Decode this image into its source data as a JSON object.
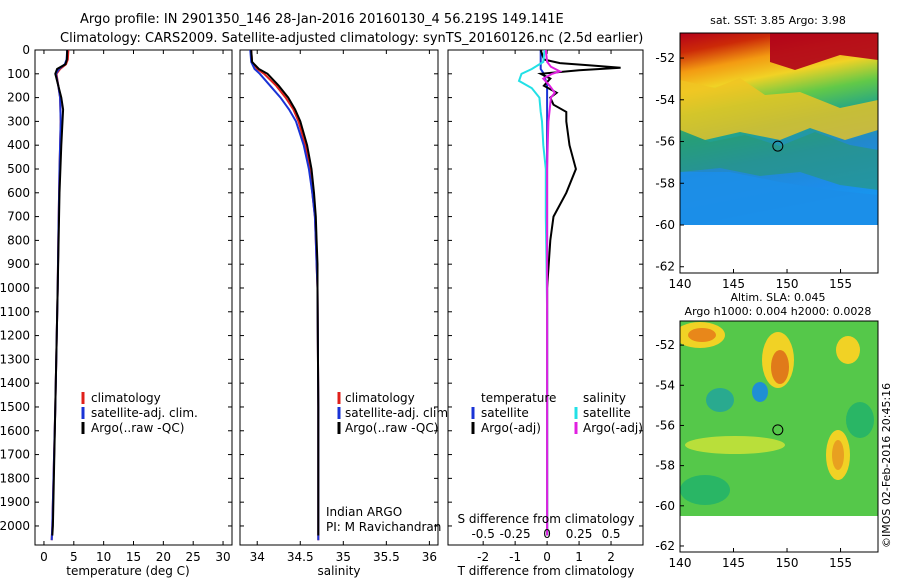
{
  "header": {
    "line1": "Argo profile: IN 2901350_146 28-Jan-2016 20160130_4 56.219S 149.141E",
    "line2": "Climatology: CARS2009. Satellite-adjusted climatology: synTS_20160126.nc (2.5d earlier)"
  },
  "footer": {
    "credit": "©IMOS 02-Feb-2016 20:45:16"
  },
  "colors": {
    "climatology": "#e0201b",
    "satellite": "#1a33d6",
    "argo": "#000000",
    "sal_satellite": "#22e0e6",
    "sal_argo": "#e020e0"
  },
  "legends": {
    "temp": [
      "climatology",
      "satellite-adj. clim.",
      "Argo(..raw -QC)"
    ],
    "sal": [
      "climatology",
      "satellite-adj. clim.",
      "Argo(..raw -QC)"
    ],
    "diff_t_head": "temperature",
    "diff_s_head": "salinity",
    "diff_t": [
      "satellite",
      "Argo(-adj)"
    ],
    "diff_s": [
      "satellite",
      "Argo(-adj)"
    ]
  },
  "annotation": {
    "line1": "Indian ARGO",
    "line2": "PI: M Ravichandran"
  },
  "chart_data": [
    {
      "type": "line",
      "title": "",
      "xlabel": "temperature (deg C)",
      "ylim": [
        2080,
        0
      ],
      "xlim": [
        -1.5,
        31.5
      ],
      "xticks": [
        0,
        5,
        10,
        15,
        20,
        25,
        30
      ],
      "yticks": [
        0,
        100,
        200,
        300,
        400,
        500,
        600,
        700,
        800,
        900,
        1000,
        1100,
        1200,
        1300,
        1400,
        1500,
        1600,
        1700,
        1800,
        1900,
        2000
      ],
      "series": [
        {
          "name": "climatology",
          "depth": [
            0,
            40,
            60,
            80,
            100,
            150,
            200,
            300,
            500,
            800,
            1000,
            1500,
            2000,
            2060
          ],
          "values": [
            4.1,
            4.0,
            3.7,
            2.7,
            2.1,
            2.4,
            2.7,
            2.8,
            2.6,
            2.4,
            2.3,
            1.9,
            1.4,
            1.3
          ]
        },
        {
          "name": "satellite-adj. clim.",
          "depth": [
            0,
            40,
            60,
            80,
            100,
            150,
            200,
            300,
            500,
            800,
            1000,
            1500,
            2000,
            2060
          ],
          "values": [
            3.9,
            3.8,
            3.5,
            2.5,
            2.0,
            2.4,
            2.7,
            2.8,
            2.6,
            2.4,
            2.3,
            1.9,
            1.4,
            1.3
          ]
        },
        {
          "name": "Argo(..raw -QC)",
          "depth": [
            0,
            40,
            60,
            80,
            100,
            150,
            200,
            250,
            300,
            400,
            500,
            600,
            800,
            1000,
            1500,
            2000,
            2040
          ],
          "values": [
            3.9,
            3.85,
            3.6,
            2.2,
            1.9,
            2.4,
            2.9,
            3.2,
            3.1,
            2.9,
            2.75,
            2.6,
            2.45,
            2.3,
            1.9,
            1.5,
            1.4
          ]
        }
      ]
    },
    {
      "type": "line",
      "title": "",
      "xlabel": "salinity",
      "ylim": [
        2080,
        0
      ],
      "xlim": [
        33.8,
        36.1
      ],
      "xticks": [
        34,
        34.5,
        35,
        35.5,
        36
      ],
      "series": [
        {
          "name": "climatology",
          "depth": [
            0,
            50,
            80,
            100,
            150,
            200,
            250,
            300,
            400,
            500,
            600,
            700,
            800,
            900,
            1000,
            1500,
            2000,
            2060
          ],
          "values": [
            33.93,
            33.94,
            34.0,
            34.08,
            34.22,
            34.33,
            34.42,
            34.48,
            34.56,
            34.61,
            34.64,
            34.67,
            34.68,
            34.69,
            34.7,
            34.71,
            34.71,
            34.71
          ]
        },
        {
          "name": "satellite-adj. clim.",
          "depth": [
            0,
            50,
            80,
            100,
            150,
            200,
            250,
            300,
            400,
            500,
            600,
            700,
            800,
            900,
            1000,
            1500,
            2000,
            2060
          ],
          "values": [
            33.92,
            33.93,
            33.97,
            34.03,
            34.15,
            34.27,
            34.37,
            34.45,
            34.54,
            34.6,
            34.64,
            34.67,
            34.68,
            34.69,
            34.7,
            34.71,
            34.71,
            34.71
          ]
        },
        {
          "name": "Argo(..raw -QC)",
          "depth": [
            0,
            50,
            80,
            100,
            150,
            200,
            250,
            300,
            400,
            500,
            600,
            700,
            800,
            900,
            1000,
            1500,
            2000,
            2040
          ],
          "values": [
            33.93,
            33.94,
            34.02,
            34.12,
            34.25,
            34.36,
            34.44,
            34.5,
            34.58,
            34.63,
            34.66,
            34.68,
            34.69,
            34.7,
            34.7,
            34.71,
            34.71,
            34.71
          ]
        }
      ]
    },
    {
      "type": "line",
      "title": "",
      "xlabel": "T difference from climatology",
      "xlabel2": "S difference from climatology",
      "ylim": [
        2080,
        0
      ],
      "xlim": [
        -3.1,
        3.0
      ],
      "xticks": [
        -2,
        -1,
        0,
        1,
        2
      ],
      "xticks2": [
        -0.5,
        -0.25,
        0,
        0.25,
        0.5
      ],
      "series": [
        {
          "name": "temperature satellite",
          "depth": [
            0,
            40,
            60,
            80,
            100,
            150,
            200,
            300,
            500,
            800,
            1000,
            1500,
            2000,
            2040
          ],
          "values": [
            -0.2,
            -0.2,
            -0.2,
            -0.2,
            -0.1,
            0,
            0,
            0,
            0,
            0,
            0,
            0,
            0,
            0
          ]
        },
        {
          "name": "temperature Argo(-adj)",
          "depth": [
            0,
            40,
            55,
            65,
            75,
            85,
            100,
            120,
            150,
            180,
            200,
            230,
            260,
            300,
            400,
            500,
            600,
            700,
            800,
            1000,
            1500,
            2040
          ],
          "values": [
            -0.2,
            -0.1,
            0.4,
            1.4,
            2.3,
            1.0,
            -0.2,
            0.1,
            -0.1,
            0.3,
            0.1,
            0.2,
            0.6,
            0.6,
            0.7,
            0.9,
            0.6,
            0.2,
            0.1,
            0,
            0,
            0
          ]
        },
        {
          "name": "salinity satellite",
          "depth": [
            0,
            50,
            80,
            100,
            130,
            160,
            200,
            260,
            300,
            400,
            500,
            700,
            900,
            1100,
            1500,
            2040
          ],
          "values": [
            -0.02,
            -0.03,
            -0.12,
            -0.2,
            -0.22,
            -0.12,
            -0.06,
            -0.05,
            -0.04,
            -0.03,
            -0.01,
            -0.01,
            -0.005,
            0,
            0,
            0
          ]
        },
        {
          "name": "salinity Argo(-adj)",
          "depth": [
            0,
            50,
            70,
            90,
            100,
            120,
            150,
            180,
            200,
            250,
            300,
            400,
            500,
            700,
            900,
            1100,
            1500,
            2040
          ],
          "values": [
            -0.01,
            0.0,
            0.03,
            0.1,
            0.04,
            -0.03,
            0.02,
            0.06,
            0.03,
            0.02,
            0.01,
            0.005,
            0,
            0,
            0,
            0,
            0,
            0
          ]
        }
      ]
    },
    {
      "type": "heatmap",
      "title": "sat. SST: 3.85 Argo: 3.98",
      "xlim": [
        140,
        158.5
      ],
      "ylim": [
        -62.3,
        -50.8
      ],
      "xticks": [
        140,
        145,
        150,
        155
      ],
      "yticks": [
        -52,
        -54,
        -56,
        -58,
        -60,
        -62
      ],
      "marker": {
        "lon": 149.141,
        "lat": -56.219
      }
    },
    {
      "type": "heatmap",
      "title": "Altim. SLA: 0.045",
      "subtitle": "Argo h1000: 0.004 h2000: 0.0028",
      "xlim": [
        140,
        158.5
      ],
      "ylim": [
        -62.3,
        -50.8
      ],
      "xticks": [
        140,
        145,
        150,
        155
      ],
      "yticks": [
        -52,
        -54,
        -56,
        -58,
        -60,
        -62
      ],
      "marker": {
        "lon": 149.141,
        "lat": -56.219
      }
    }
  ]
}
